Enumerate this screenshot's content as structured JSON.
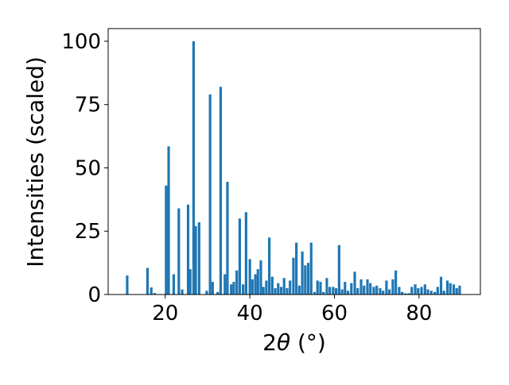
{
  "chart_data": {
    "type": "bar",
    "xlabel_main": "2",
    "xlabel_theta": "θ",
    "xlabel_unit": " (°)",
    "ylabel": "Intensities (scaled)",
    "xlim": [
      6.5,
      94.5
    ],
    "ylim": [
      0,
      105
    ],
    "xticks": [
      20,
      40,
      60,
      80
    ],
    "yticks": [
      0,
      25,
      50,
      75,
      100
    ],
    "bar_color": "#1f77b4",
    "grid": false,
    "x": [
      11.0,
      15.8,
      16.7,
      17.5,
      20.2,
      20.8,
      22.0,
      23.2,
      24.0,
      25.4,
      25.9,
      26.7,
      27.2,
      28.0,
      29.8,
      30.6,
      31.2,
      32.4,
      33.1,
      34.1,
      34.7,
      35.6,
      36.2,
      36.9,
      37.6,
      38.4,
      39.1,
      40.0,
      40.6,
      41.3,
      41.9,
      42.6,
      43.2,
      43.9,
      44.6,
      45.3,
      46.0,
      46.7,
      47.4,
      48.1,
      48.8,
      49.5,
      50.3,
      51.0,
      51.7,
      52.4,
      53.1,
      53.8,
      54.5,
      55.3,
      56.0,
      56.7,
      57.4,
      58.2,
      58.9,
      59.7,
      60.4,
      61.1,
      61.8,
      62.5,
      63.2,
      64.0,
      64.8,
      65.5,
      66.3,
      67.0,
      67.8,
      68.5,
      69.3,
      70.0,
      70.8,
      71.5,
      72.3,
      73.0,
      73.8,
      74.5,
      75.3,
      76.0,
      76.8,
      77.6,
      78.3,
      79.1,
      79.8,
      80.6,
      81.4,
      82.1,
      82.9,
      83.7,
      84.4,
      85.2,
      85.9,
      86.7,
      87.4,
      88.2,
      88.9,
      89.6
    ],
    "values": [
      7.5,
      10.5,
      2.8,
      0.6,
      43,
      58.5,
      8,
      34,
      2,
      35.5,
      10,
      100,
      27,
      28.5,
      1.5,
      79,
      5,
      1,
      82,
      8,
      44.5,
      4,
      5,
      9.5,
      30,
      4,
      32.5,
      14,
      6,
      8,
      10,
      13.5,
      3,
      5.5,
      22.5,
      7,
      2.5,
      4.5,
      3,
      6.5,
      2.5,
      5.5,
      14.5,
      20.5,
      3.5,
      17,
      11.5,
      12.5,
      20.5,
      1,
      5.5,
      5,
      1,
      6.5,
      3,
      3,
      2.5,
      19.5,
      2,
      5,
      1.5,
      4.5,
      9,
      2.5,
      6,
      3.5,
      6,
      4.5,
      3,
      3.5,
      2.5,
      1.5,
      5.5,
      2,
      6,
      9.5,
      3,
      1,
      0.5,
      0.5,
      3,
      4,
      2.5,
      3,
      4,
      2,
      1.5,
      1,
      3,
      7,
      1.5,
      5.5,
      4.5,
      4,
      2.5,
      3.5
    ]
  }
}
